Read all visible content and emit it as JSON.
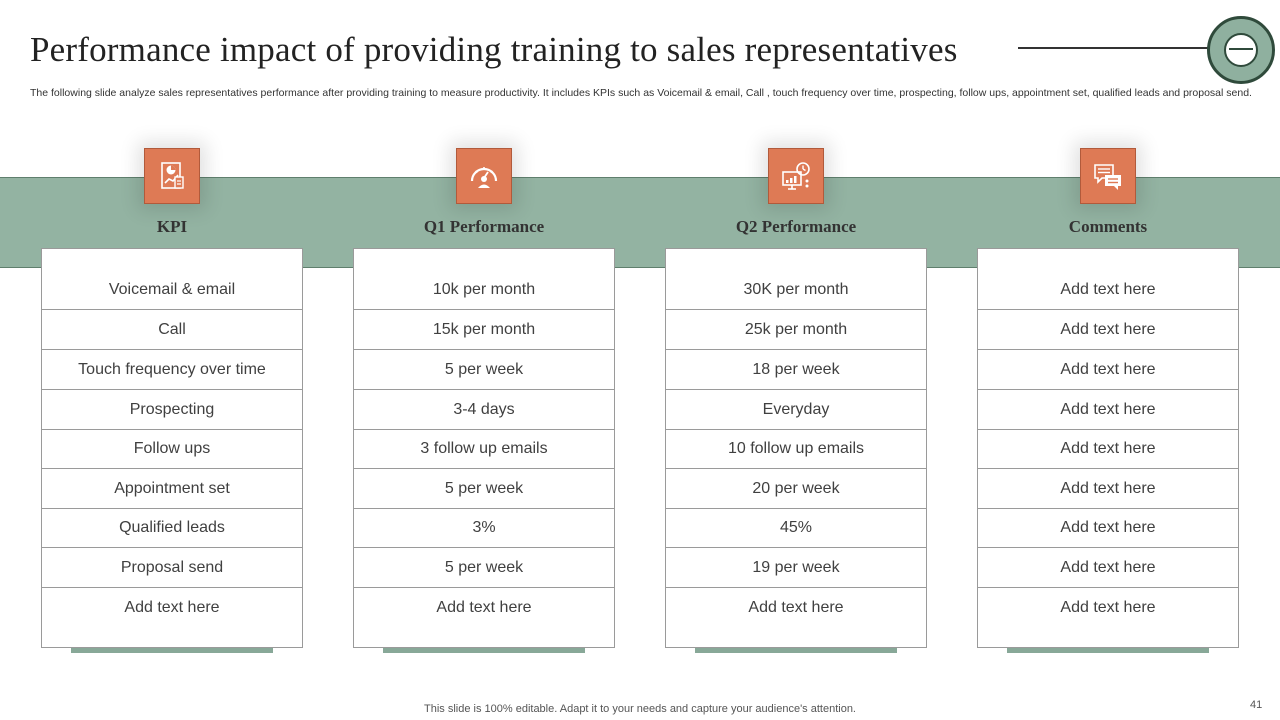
{
  "title": "Performance impact of providing training to sales representatives",
  "subtitle": "The following slide analyze sales representatives performance after providing training to measure productivity. It includes KPIs such as Voicemail & email, Call , touch frequency over time, prospecting, follow ups, appointment set, qualified leads and proposal send.",
  "columns": [
    {
      "header": "KPI",
      "icon": "document-chart-icon",
      "rows": [
        "Voicemail & email",
        "Call",
        "Touch frequency  over time",
        "Prospecting",
        "Follow ups",
        "Appointment set",
        "Qualified leads",
        "Proposal send",
        "Add text here"
      ]
    },
    {
      "header": "Q1 Performance",
      "icon": "speedometer-user-icon",
      "rows": [
        "10k per month",
        "15k per month",
        "5 per week",
        "3-4 days",
        "3 follow up emails",
        "5 per week",
        "3%",
        "5 per week",
        "Add text here"
      ]
    },
    {
      "header": "Q2 Performance",
      "icon": "monitor-growth-icon",
      "rows": [
        "30K per month",
        "25k per month",
        "18 per week",
        "Everyday",
        "10 follow up emails",
        "20 per week",
        "45%",
        "19 per week",
        "Add text here"
      ]
    },
    {
      "header": "Comments",
      "icon": "chat-bubbles-icon",
      "rows": [
        "Add text here",
        "Add text here",
        "Add text here",
        "Add text here",
        "Add text here",
        "Add text here",
        "Add text here",
        "Add text here",
        "Add text here"
      ]
    }
  ],
  "footer": "This slide is 100% editable. Adapt it to your needs and capture your audience's attention.",
  "page_number": "41",
  "colors": {
    "accent_green": "#93b3a2",
    "icon_orange": "#de7a55"
  }
}
